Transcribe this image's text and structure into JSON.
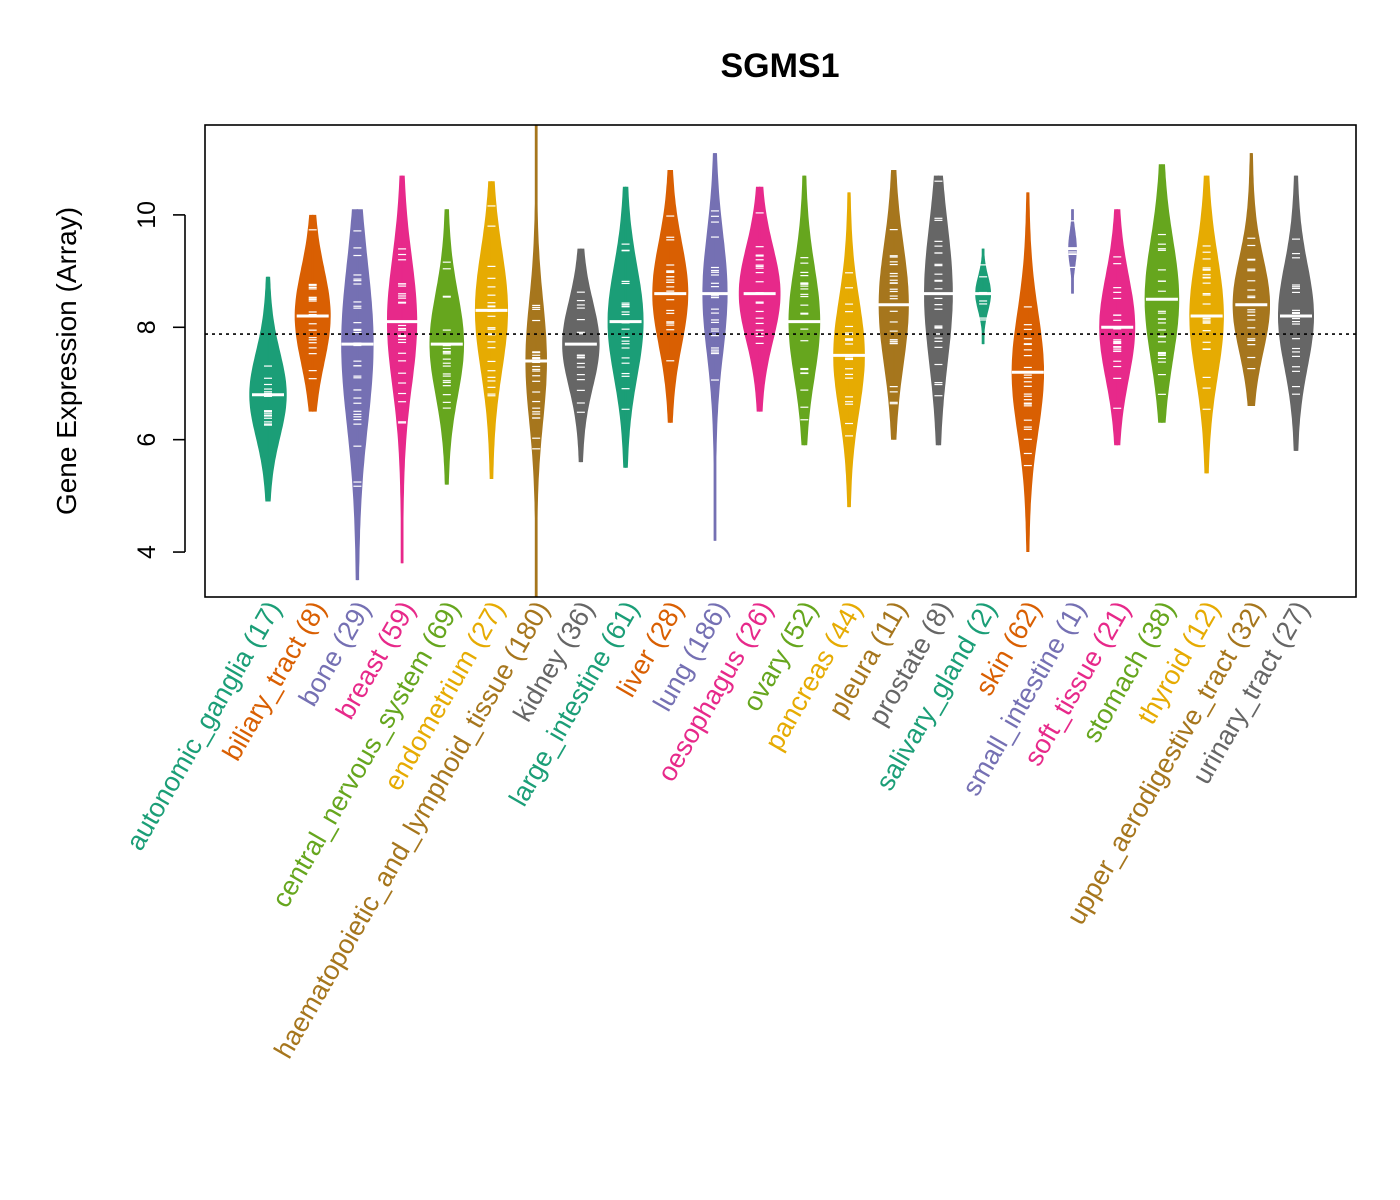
{
  "chart_data": {
    "type": "violin",
    "title": "SGMS1",
    "ylabel": "Gene Expression (Array)",
    "xlabel": "",
    "ylim": [
      3.2,
      11.6
    ],
    "yticks": [
      4,
      6,
      8,
      10
    ],
    "reference_line": 7.88,
    "categories": [
      {
        "label": "autonomic_ganglia (17)",
        "color": "#1b9e77",
        "min": 4.9,
        "max": 8.9,
        "median": 6.8,
        "q1": 6.3,
        "q3": 7.3,
        "spread": 0.52
      },
      {
        "label": "biliary_tract (8)",
        "color": "#d95f02",
        "min": 6.5,
        "max": 10.0,
        "median": 8.2,
        "q1": 7.7,
        "q3": 8.8,
        "spread": 0.5
      },
      {
        "label": "bone (29)",
        "color": "#7570b3",
        "min": 3.5,
        "max": 10.1,
        "median": 7.7,
        "q1": 7.0,
        "q3": 8.9,
        "spread": 0.45
      },
      {
        "label": "breast (59)",
        "color": "#e7298a",
        "min": 3.8,
        "max": 10.7,
        "median": 8.1,
        "q1": 7.3,
        "q3": 8.8,
        "spread": 0.42
      },
      {
        "label": "central_nervous_system (69)",
        "color": "#66a61e",
        "min": 5.2,
        "max": 10.1,
        "median": 7.7,
        "q1": 7.1,
        "q3": 8.3,
        "spread": 0.48
      },
      {
        "label": "endometrium (27)",
        "color": "#e6ab02",
        "min": 5.3,
        "max": 10.6,
        "median": 8.3,
        "q1": 7.6,
        "q3": 9.0,
        "spread": 0.46
      },
      {
        "label": "haematopoietic_and_lymphoid_tissue (180)",
        "color": "#a6761d",
        "min": 3.2,
        "max": 11.6,
        "median": 7.4,
        "q1": 6.6,
        "q3": 8.0,
        "spread": 0.3
      },
      {
        "label": "kidney (36)",
        "color": "#666666",
        "min": 5.6,
        "max": 9.4,
        "median": 7.7,
        "q1": 7.2,
        "q3": 8.2,
        "spread": 0.52
      },
      {
        "label": "large_intestine (61)",
        "color": "#1b9e77",
        "min": 5.5,
        "max": 10.5,
        "median": 8.1,
        "q1": 7.4,
        "q3": 8.7,
        "spread": 0.5
      },
      {
        "label": "liver (28)",
        "color": "#d95f02",
        "min": 6.3,
        "max": 10.8,
        "median": 8.6,
        "q1": 8.0,
        "q3": 9.2,
        "spread": 0.5
      },
      {
        "label": "lung (186)",
        "color": "#7570b3",
        "min": 4.2,
        "max": 11.1,
        "median": 8.6,
        "q1": 7.8,
        "q3": 9.2,
        "spread": 0.35
      },
      {
        "label": "oesophagus (26)",
        "color": "#e7298a",
        "min": 6.5,
        "max": 10.5,
        "median": 8.6,
        "q1": 8.0,
        "q3": 9.1,
        "spread": 0.58
      },
      {
        "label": "ovary (52)",
        "color": "#66a61e",
        "min": 5.9,
        "max": 10.7,
        "median": 8.1,
        "q1": 7.5,
        "q3": 8.8,
        "spread": 0.44
      },
      {
        "label": "pancreas (44)",
        "color": "#e6ab02",
        "min": 4.8,
        "max": 10.4,
        "median": 7.5,
        "q1": 6.9,
        "q3": 8.2,
        "spread": 0.44
      },
      {
        "label": "pleura (11)",
        "color": "#a6761d",
        "min": 6.0,
        "max": 10.8,
        "median": 8.4,
        "q1": 7.6,
        "q3": 9.0,
        "spread": 0.42
      },
      {
        "label": "prostate (8)",
        "color": "#666666",
        "min": 5.9,
        "max": 10.7,
        "median": 8.6,
        "q1": 7.9,
        "q3": 9.5,
        "spread": 0.4
      },
      {
        "label": "salivary_gland (2)",
        "color": "#1b9e77",
        "min": 7.7,
        "max": 9.4,
        "median": 8.6,
        "q1": 8.4,
        "q3": 8.8,
        "spread": 0.22
      },
      {
        "label": "skin (62)",
        "color": "#d95f02",
        "min": 4.0,
        "max": 10.4,
        "median": 7.2,
        "q1": 6.4,
        "q3": 7.8,
        "spread": 0.45
      },
      {
        "label": "small_intestine (1)",
        "color": "#7570b3",
        "min": 8.6,
        "max": 10.1,
        "median": 9.4,
        "q1": 9.2,
        "q3": 9.6,
        "spread": 0.12
      },
      {
        "label": "soft_tissue (21)",
        "color": "#e7298a",
        "min": 5.9,
        "max": 10.1,
        "median": 8.0,
        "q1": 7.4,
        "q3": 8.6,
        "spread": 0.5
      },
      {
        "label": "stomach (38)",
        "color": "#66a61e",
        "min": 6.3,
        "max": 10.9,
        "median": 8.5,
        "q1": 7.8,
        "q3": 9.2,
        "spread": 0.48
      },
      {
        "label": "thyroid (12)",
        "color": "#e6ab02",
        "min": 5.4,
        "max": 10.7,
        "median": 8.2,
        "q1": 7.4,
        "q3": 8.8,
        "spread": 0.48
      },
      {
        "label": "upper_aerodigestive_tract (32)",
        "color": "#a6761d",
        "min": 6.6,
        "max": 11.1,
        "median": 8.4,
        "q1": 7.9,
        "q3": 9.0,
        "spread": 0.52
      },
      {
        "label": "urinary_tract (27)",
        "color": "#666666",
        "min": 5.8,
        "max": 10.7,
        "median": 8.2,
        "q1": 7.6,
        "q3": 8.8,
        "spread": 0.5
      }
    ]
  }
}
